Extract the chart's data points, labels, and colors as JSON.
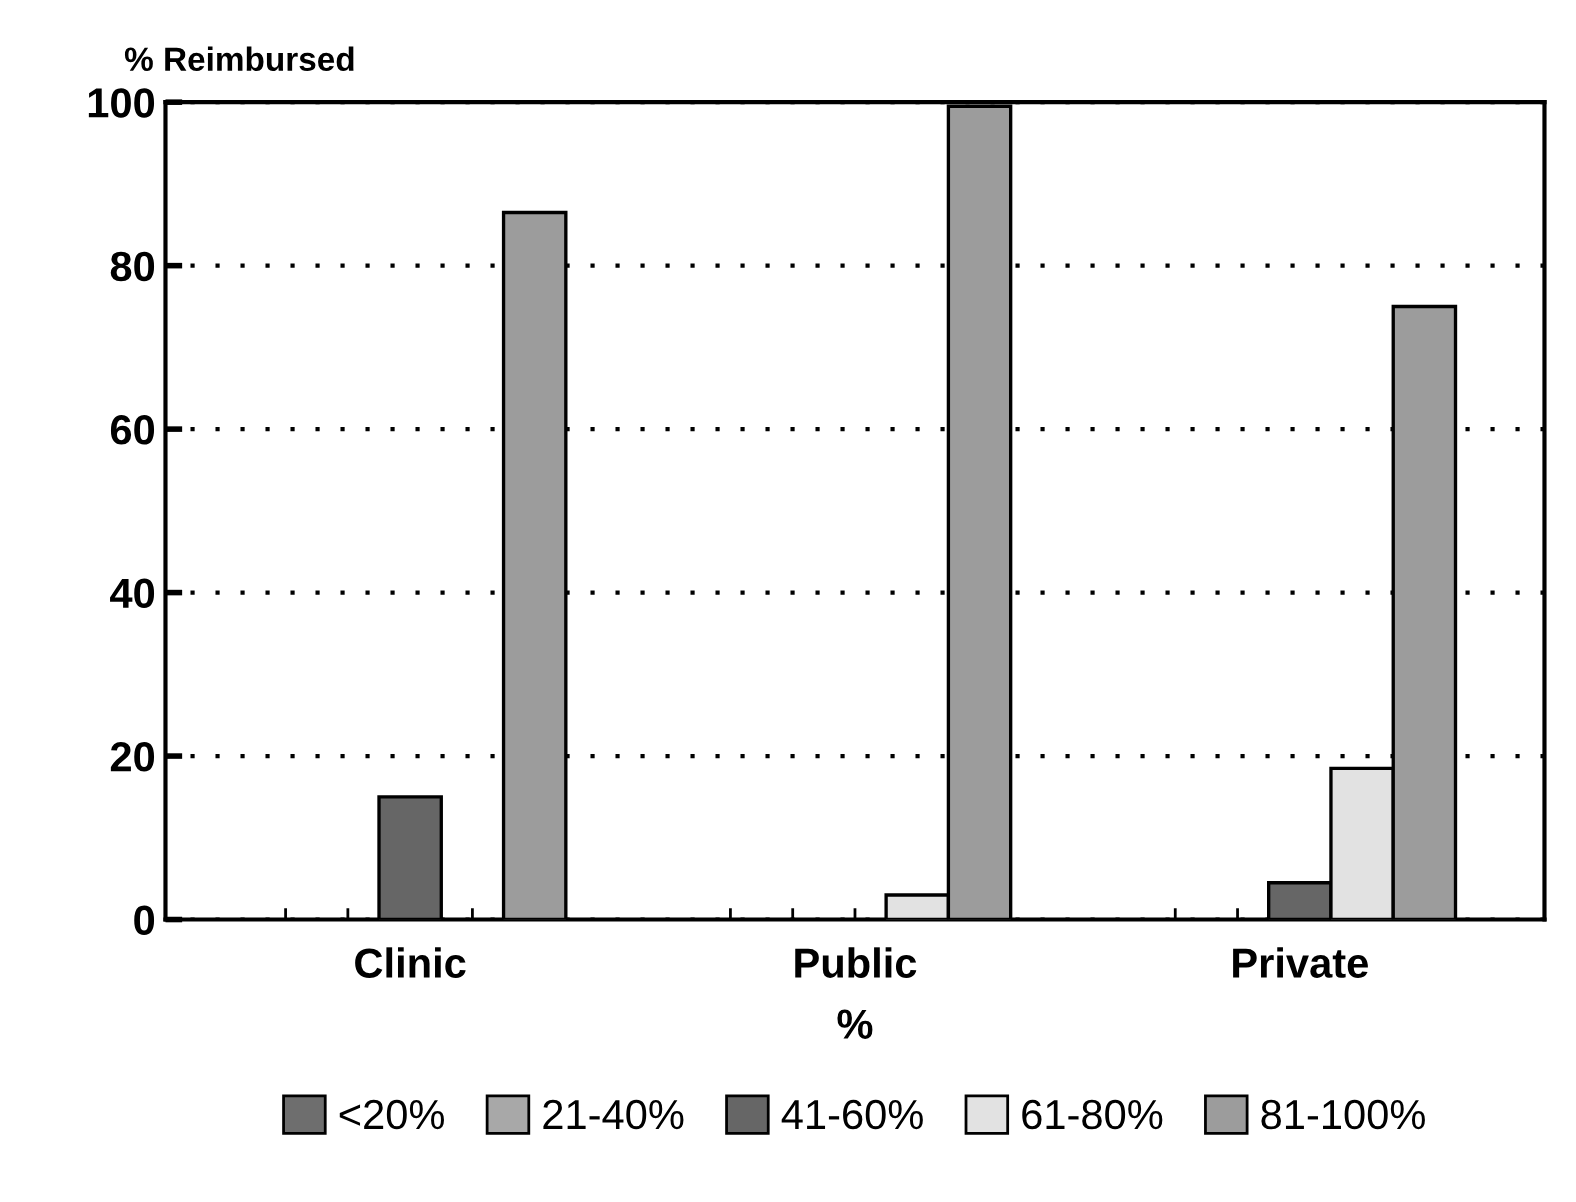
{
  "chart_data": {
    "type": "bar",
    "ylabel": "% Reimbursed",
    "xlabel": "%",
    "categories": [
      "Clinic",
      "Public",
      "Private"
    ],
    "series": [
      {
        "name": "<20%",
        "color": "#6e6e6e",
        "values": [
          0,
          0,
          0
        ]
      },
      {
        "name": "21-40%",
        "color": "#a8a8a8",
        "values": [
          0,
          0,
          0
        ]
      },
      {
        "name": "41-60%",
        "color": "#666666",
        "values": [
          15,
          0,
          4.5
        ]
      },
      {
        "name": "61-80%",
        "color": "#e2e2e2",
        "values": [
          0,
          3,
          18.5
        ]
      },
      {
        "name": "81-100%",
        "color": "#9c9c9c",
        "values": [
          86.5,
          99.5,
          75
        ]
      }
    ],
    "ylim": [
      0,
      100
    ],
    "yticks": [
      0,
      20,
      40,
      60,
      80,
      100
    ],
    "grid": "y",
    "legend": "bottom"
  }
}
